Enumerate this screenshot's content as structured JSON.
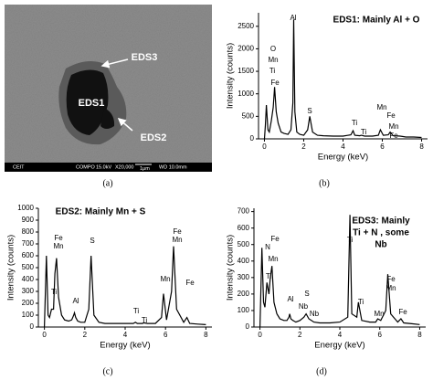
{
  "image": {
    "labels": [
      "EDS1",
      "EDS2",
      "EDS3"
    ],
    "info_bar": [
      "CEIT",
      "COMPO",
      "15.0kV",
      "X20,000",
      "1μm",
      "WD 10.0mm"
    ]
  },
  "panel_labels": [
    "(a)",
    "(b)",
    "(c)",
    "(d)"
  ],
  "chart_data": [
    {
      "type": "line",
      "title": "EDS1: Mainly Al + O",
      "xlabel": "Energy (keV)",
      "ylabel": "Intensity (counts)",
      "color": "#000000",
      "x": [
        0,
        0.05,
        0.1,
        0.18,
        0.25,
        0.35,
        0.45,
        0.52,
        0.6,
        0.7,
        0.85,
        1.0,
        1.2,
        1.35,
        1.45,
        1.49,
        1.55,
        1.65,
        1.8,
        2.0,
        2.2,
        2.31,
        2.45,
        2.7,
        3.0,
        3.5,
        4.0,
        4.4,
        4.51,
        4.6,
        4.85,
        4.93,
        5.1,
        5.5,
        5.8,
        5.9,
        6.05,
        6.3,
        6.4,
        6.55,
        6.9,
        7.06,
        7.2,
        7.6,
        8
      ],
      "values": [
        0,
        300,
        750,
        200,
        150,
        400,
        700,
        1150,
        600,
        350,
        150,
        120,
        100,
        200,
        800,
        2650,
        600,
        150,
        100,
        80,
        200,
        500,
        150,
        80,
        70,
        60,
        60,
        90,
        180,
        80,
        70,
        80,
        60,
        60,
        80,
        200,
        80,
        90,
        150,
        70,
        60,
        50,
        40,
        40,
        30
      ],
      "xlim": [
        -0.3,
        8.3
      ],
      "xticks": [
        0,
        2,
        4,
        6,
        8
      ],
      "ylim": [
        0,
        2800
      ],
      "yticks": [
        0,
        500,
        1000,
        1500,
        2000,
        2500
      ],
      "annotations": [
        "O",
        "Mn",
        "Ti",
        "Fe",
        "Al",
        "S",
        "Ti",
        "Ti",
        "Mn",
        "Fe",
        "Mn",
        "Fe"
      ]
    },
    {
      "type": "line",
      "title": "EDS2: Mainly Mn + S",
      "xlabel": "Energy (keV)",
      "ylabel": "Intensity (counts)",
      "color": "#000000",
      "x": [
        0,
        0.05,
        0.1,
        0.18,
        0.25,
        0.35,
        0.45,
        0.52,
        0.6,
        0.7,
        0.85,
        1.0,
        1.2,
        1.35,
        1.45,
        1.49,
        1.55,
        1.65,
        1.8,
        2.0,
        2.2,
        2.31,
        2.45,
        2.7,
        3.0,
        3.5,
        4.0,
        4.4,
        4.51,
        4.6,
        4.85,
        4.93,
        5.1,
        5.5,
        5.8,
        5.9,
        6.05,
        6.3,
        6.4,
        6.55,
        6.9,
        7.06,
        7.2,
        7.6,
        8
      ],
      "values": [
        0,
        300,
        600,
        100,
        80,
        150,
        150,
        450,
        580,
        250,
        100,
        60,
        50,
        60,
        100,
        120,
        80,
        50,
        40,
        40,
        150,
        600,
        100,
        40,
        30,
        30,
        30,
        30,
        40,
        30,
        30,
        35,
        30,
        30,
        80,
        280,
        60,
        300,
        680,
        150,
        40,
        80,
        30,
        25,
        20
      ],
      "xlim": [
        -0.3,
        8.3
      ],
      "xticks": [
        0,
        2,
        4,
        6,
        8
      ],
      "ylim": [
        0,
        1000
      ],
      "yticks": [
        0,
        100,
        200,
        300,
        400,
        500,
        600,
        700,
        800,
        900,
        1000
      ],
      "annotations": [
        "Fe",
        "Mn",
        "Ti",
        "Al",
        "S",
        "Ti",
        "Ti",
        "Mn",
        "Fe",
        "Mn",
        "Fe"
      ]
    },
    {
      "type": "line",
      "title": [
        "EDS3: Mainly",
        "Ti + N , some",
        "Nb"
      ],
      "xlabel": "Energy (keV)",
      "ylabel": "Intensity (counts)",
      "color": "#000000",
      "x": [
        0,
        0.05,
        0.1,
        0.18,
        0.25,
        0.35,
        0.45,
        0.52,
        0.6,
        0.7,
        0.85,
        1.0,
        1.2,
        1.35,
        1.45,
        1.49,
        1.55,
        1.65,
        1.8,
        2.0,
        2.2,
        2.31,
        2.45,
        2.7,
        3.0,
        3.5,
        4.0,
        4.4,
        4.51,
        4.6,
        4.85,
        4.93,
        5.1,
        5.5,
        5.8,
        5.9,
        6.05,
        6.3,
        6.4,
        6.55,
        6.9,
        7.06,
        7.2,
        7.6,
        8
      ],
      "values": [
        0,
        250,
        480,
        150,
        120,
        270,
        200,
        300,
        370,
        150,
        80,
        50,
        40,
        40,
        60,
        80,
        50,
        40,
        30,
        40,
        60,
        80,
        50,
        30,
        25,
        25,
        30,
        60,
        680,
        80,
        60,
        150,
        40,
        30,
        30,
        50,
        40,
        100,
        320,
        80,
        30,
        50,
        25,
        20,
        15
      ],
      "xlim": [
        -0.3,
        8.3
      ],
      "xticks": [
        0,
        2,
        4,
        6,
        8
      ],
      "ylim": [
        0,
        720
      ],
      "yticks": [
        0,
        100,
        200,
        300,
        400,
        500,
        600,
        700
      ],
      "annotations": [
        "Fe",
        "N",
        "Mn",
        "Ti",
        "Al",
        "S",
        "Nb",
        "Nb",
        "Ti",
        "Ti",
        "Mn",
        "Fe",
        "Mn",
        "Fe"
      ]
    }
  ]
}
